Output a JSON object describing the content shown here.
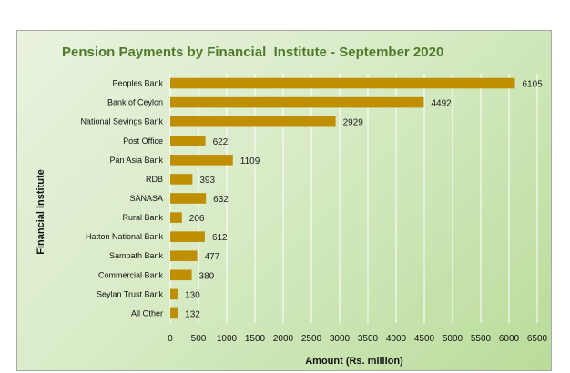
{
  "chart_data": {
    "type": "bar",
    "orientation": "horizontal",
    "title": "Pension Payments by Financial  Institute - September 2020",
    "xlabel": "Amount (Rs. million)",
    "ylabel": "Financial Institute",
    "categories": [
      "Peoples Bank",
      "Bank of Ceylon",
      "National Sevings Bank",
      "Post Office",
      "Pan Asia Bank",
      "RDB",
      "SANASA",
      "Rural Bank",
      "Hatton National Bank",
      "Sampath Bank",
      "Commercial Bank",
      "Seylan Trust Bank",
      "All Other"
    ],
    "values": [
      6105,
      4492,
      2929,
      622,
      1109,
      393,
      632,
      206,
      612,
      477,
      380,
      130,
      132
    ],
    "xlim": [
      0,
      6500
    ],
    "xticks": [
      0,
      500,
      1000,
      1500,
      2000,
      2500,
      3000,
      3500,
      4000,
      4500,
      5000,
      5500,
      6000,
      6500
    ],
    "grid": true,
    "legend": "none",
    "colors": {
      "bar": "#bf8f00",
      "grid": "#ffffff",
      "title": "#4e7a2a"
    }
  }
}
